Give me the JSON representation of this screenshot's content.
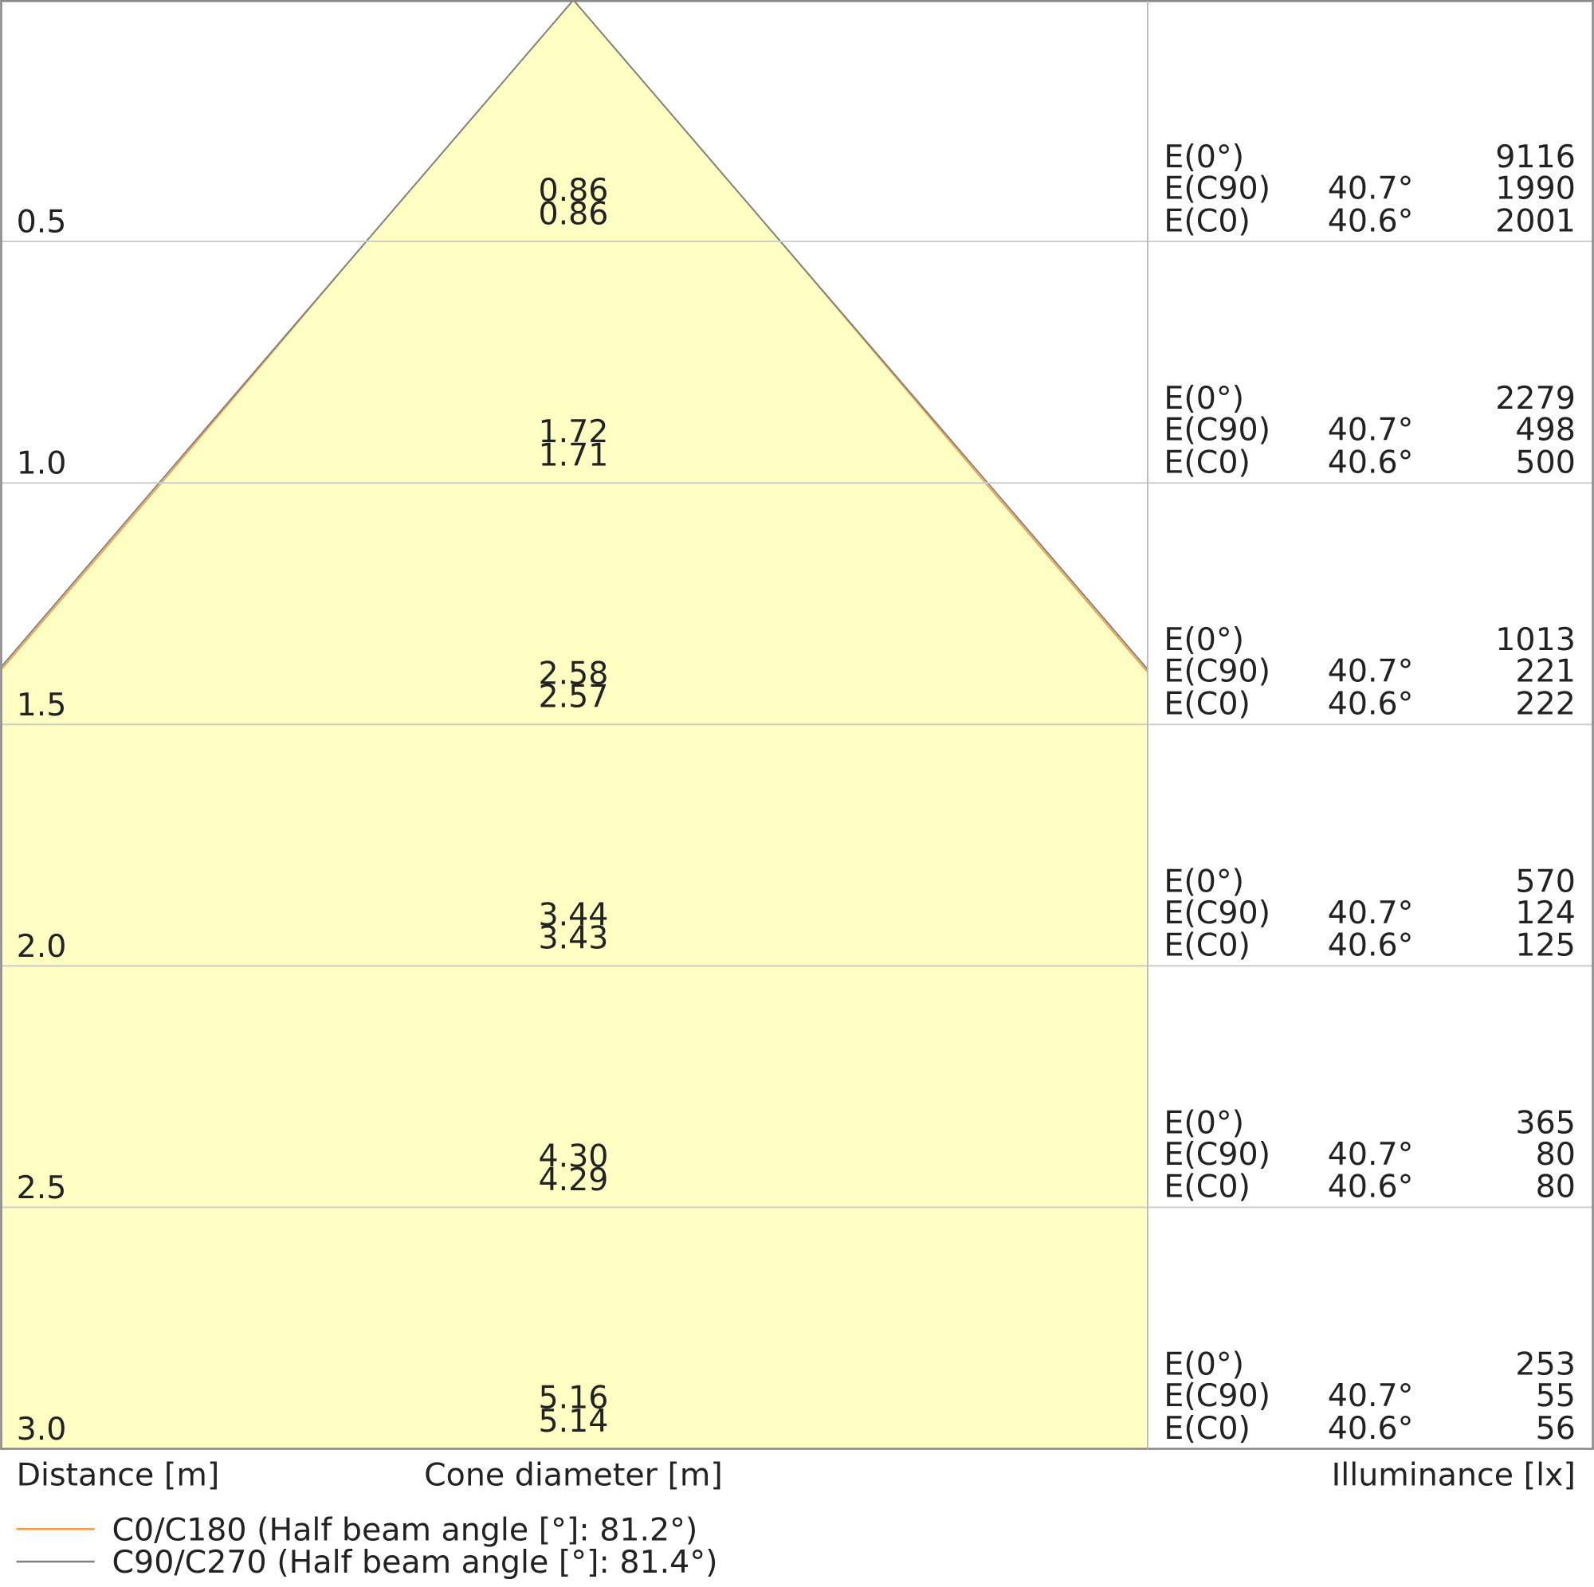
{
  "chart_data": {
    "type": "cone",
    "axis_labels": {
      "distance": "Distance [m]",
      "diameter": "Cone diameter [m]",
      "illuminance": "Illuminance [lx]"
    },
    "ylim": [
      0,
      3
    ],
    "yticks": [
      {
        "value": 0.5,
        "label": "0.5"
      },
      {
        "value": 1,
        "label": "1.0"
      },
      {
        "value": 1.5,
        "label": "1.5"
      },
      {
        "value": 2,
        "label": "2.0"
      },
      {
        "value": 2.5,
        "label": "2.5"
      },
      {
        "value": 3,
        "label": "3.0"
      }
    ],
    "series": [
      {
        "name": "C0/C180 (Half beam angle [°]: 81.2°)",
        "color": "#f0a050",
        "values": [
          0.86,
          1.71,
          2.57,
          3.43,
          4.29,
          5.14
        ],
        "value_labels": [
          "0.86",
          "1.71",
          "2.57",
          "3.43",
          "4.29",
          "5.14"
        ]
      },
      {
        "name": "C90/C270 (Half beam angle [°]: 81.4°)",
        "color": "#808080",
        "values": [
          0.86,
          1.72,
          2.58,
          3.44,
          4.3,
          5.16
        ],
        "value_labels": [
          "0.86",
          "1.72",
          "2.58",
          "3.44",
          "4.30",
          "5.16"
        ]
      }
    ],
    "illuminance": {
      "label_e0": "E(0°)",
      "label_ec90": "E(C90)",
      "label_ec0": "E(C0)",
      "angle_c90": {
        "value": 40.7,
        "label": "40.7°"
      },
      "angle_c0": {
        "value": 40.6,
        "label": "40.6°"
      },
      "e0": [
        9116,
        2279,
        1013,
        570,
        365,
        253
      ],
      "ec90": [
        1990,
        498,
        221,
        124,
        80,
        55
      ],
      "ec0": [
        2001,
        500,
        222,
        125,
        80,
        56
      ]
    }
  }
}
